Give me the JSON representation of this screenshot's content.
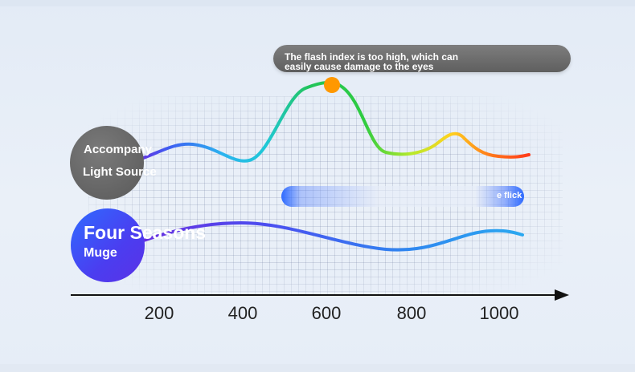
{
  "tooltip": {
    "line1": "The flash index is too high, which can",
    "line2": " easily cause damage to the eyes"
  },
  "labels": {
    "gray_line1": "Accompany",
    "gray_line2": "Light Source",
    "blue_line1": "Four Seasons",
    "blue_line2": "Muge",
    "flicker": "e flick"
  },
  "chart_data": {
    "type": "line",
    "x_ticks": [
      "200",
      "400",
      "600",
      "800",
      "1000"
    ],
    "series": [
      {
        "color": "multicolor (purple→cyan→green→yellow→red)"
      },
      {
        "color": "#4a5cf0"
      }
    ],
    "highlight": {
      "x": 600,
      "color": "#ff9800"
    }
  },
  "colors": {
    "accent_blue": "#2f6bff",
    "tooltip_bg": "#6b6b6b",
    "marker": "#ff9800"
  }
}
